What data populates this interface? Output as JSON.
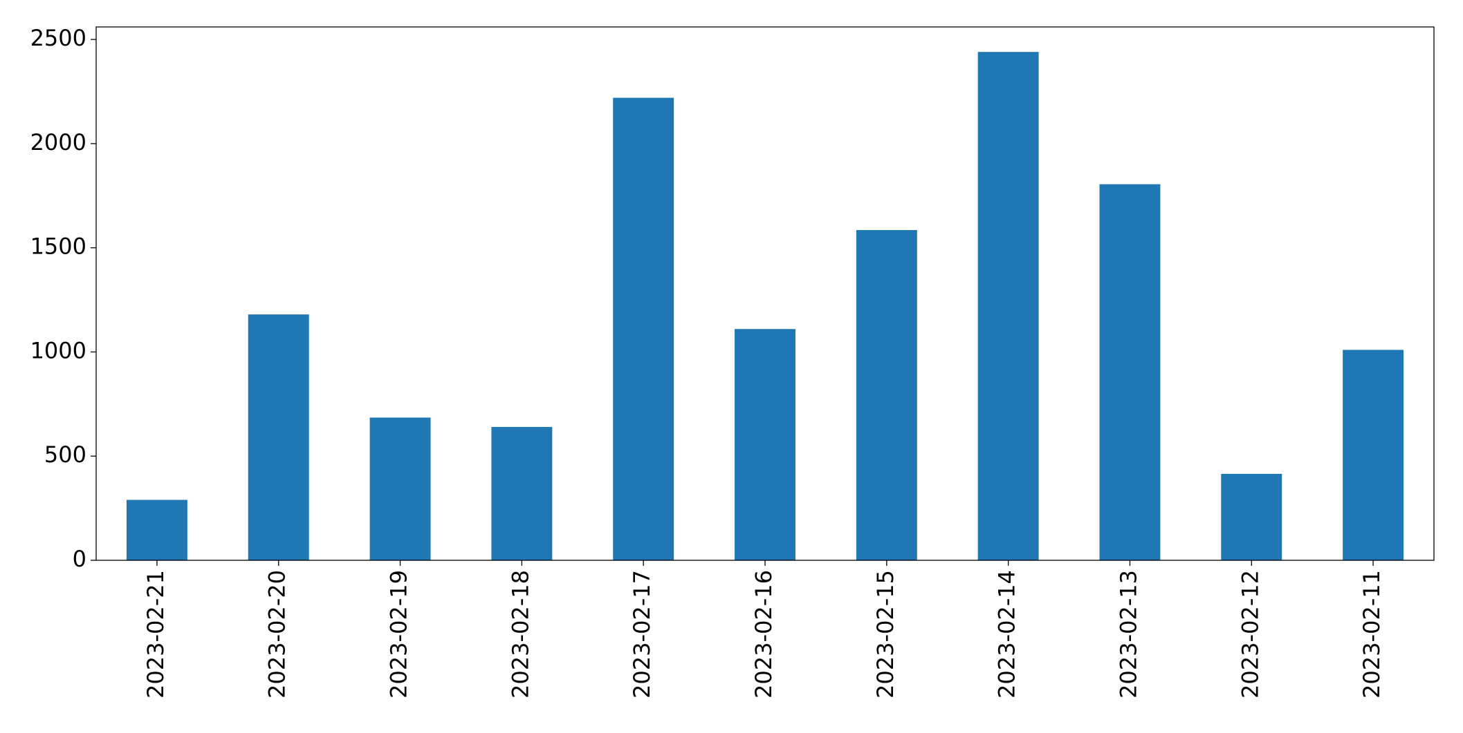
{
  "chart_data": {
    "type": "bar",
    "categories": [
      "2023-02-21",
      "2023-02-20",
      "2023-02-19",
      "2023-02-18",
      "2023-02-17",
      "2023-02-16",
      "2023-02-15",
      "2023-02-14",
      "2023-02-13",
      "2023-02-12",
      "2023-02-11"
    ],
    "values": [
      290,
      1180,
      685,
      640,
      2220,
      1110,
      1585,
      2440,
      1805,
      415,
      1010
    ],
    "color": "#1f77b4",
    "ylim": [
      0,
      2560
    ],
    "yticks": [
      0,
      500,
      1000,
      1500,
      2000,
      2500
    ],
    "grid": false
  }
}
